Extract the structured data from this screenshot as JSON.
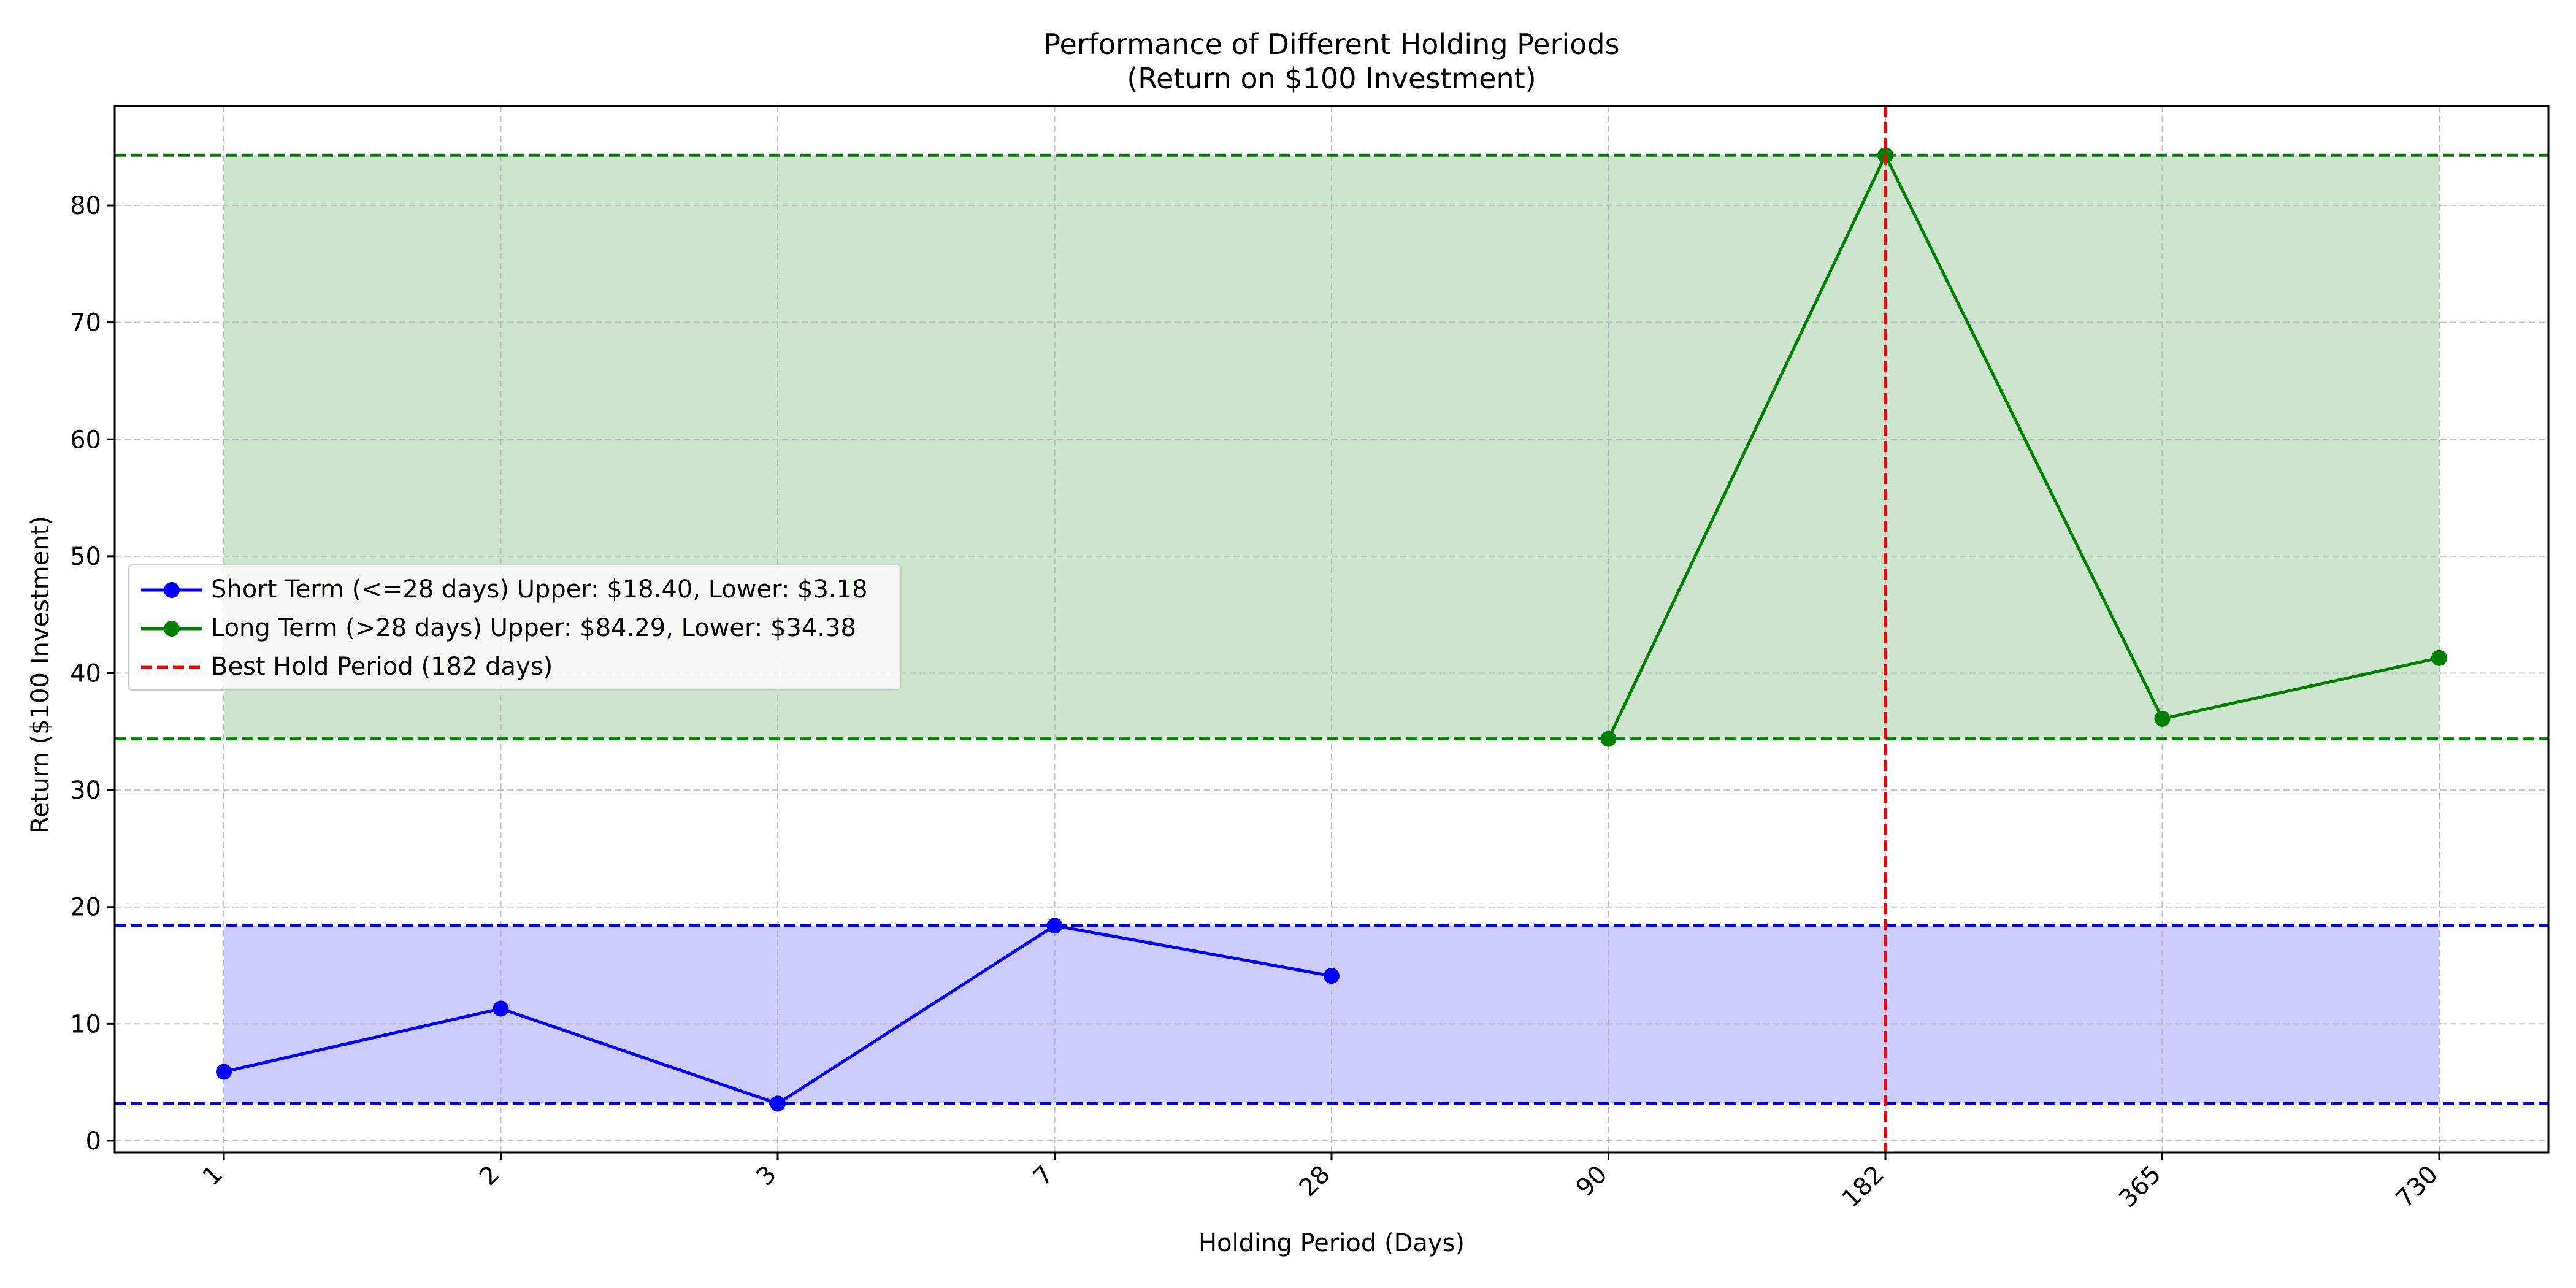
{
  "chart_data": {
    "type": "line",
    "title": "Performance of Different Holding Periods",
    "subtitle": "(Return on $100 Investment)",
    "xlabel": "Holding Period (Days)",
    "ylabel": "Return ($100 Investment)",
    "categories": [
      "1",
      "2",
      "3",
      "7",
      "28",
      "90",
      "182",
      "365",
      "730"
    ],
    "ylim": [
      -1,
      88.5
    ],
    "yticks": [
      0,
      10,
      20,
      30,
      40,
      50,
      60,
      70,
      80
    ],
    "grid": true,
    "legend_position": "center-left",
    "series": [
      {
        "name": "Short Term (<=28 days) Upper: $18.40, Lower: $3.18",
        "color": "#0000ff",
        "x": [
          "1",
          "2",
          "3",
          "7",
          "28"
        ],
        "values": [
          5.9,
          11.3,
          3.18,
          18.4,
          14.1
        ],
        "band": [
          3.18,
          18.4
        ],
        "band_color": "#ccccff"
      },
      {
        "name": "Long Term (>28 days) Upper: $84.29, Lower: $34.38",
        "color": "#008000",
        "x": [
          "90",
          "182",
          "365",
          "730"
        ],
        "values": [
          34.38,
          84.29,
          36.1,
          41.3
        ],
        "band": [
          34.38,
          84.29
        ],
        "band_color": "#cce5cc"
      }
    ],
    "reference_line": {
      "name": "Best Hold Period (182 days)",
      "x": "182",
      "color": "#ff0000"
    }
  }
}
